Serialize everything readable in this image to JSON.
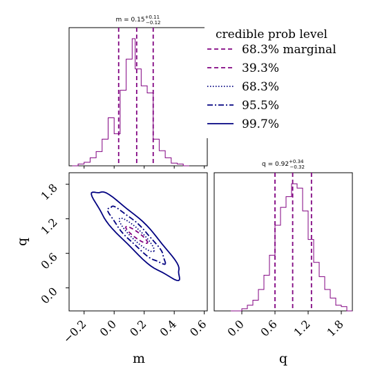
{
  "chart_data": [
    {
      "type": "histogram",
      "panel": "marginal-m",
      "title": "m = 0.15^{+0.11}_{-0.12}",
      "title_parts": {
        "base": "m = 0.15",
        "sup": "+0.11",
        "sub": "−0.12"
      },
      "x_range": [
        -0.3,
        0.62
      ],
      "x_ticks": [
        -0.2,
        0.0,
        0.2,
        0.4,
        0.6
      ],
      "bin_edges": [
        -0.28,
        -0.24,
        -0.2,
        -0.16,
        -0.12,
        -0.08,
        -0.04,
        0.0,
        0.04,
        0.08,
        0.12,
        0.14,
        0.18,
        0.22,
        0.26,
        0.3,
        0.34,
        0.38,
        0.42,
        0.46,
        0.5
      ],
      "counts": [
        0,
        2,
        4,
        9,
        16,
        30,
        54,
        36,
        85,
        120,
        143,
        109,
        90,
        82,
        30,
        17,
        9,
        3,
        2,
        0
      ],
      "quantile_lines": [
        0.03,
        0.15,
        0.26
      ],
      "line_color": "#800080"
    },
    {
      "type": "histogram",
      "panel": "marginal-q",
      "title": "q = 0.92^{+0.34}_{-0.32}",
      "title_parts": {
        "base": "q = 0.92",
        "sup": "+0.34",
        "sub": "−0.32"
      },
      "x_range": [
        -0.5,
        2.0
      ],
      "x_ticks": [
        0.0,
        0.6,
        1.2,
        1.8
      ],
      "x_tick_labels": [
        "0.0",
        "0.6",
        "1.2",
        "1.8"
      ],
      "xlabel": "q",
      "bin_edges": [
        -0.2,
        0.0,
        0.1,
        0.2,
        0.3,
        0.4,
        0.5,
        0.6,
        0.7,
        0.8,
        0.9,
        1.0,
        1.1,
        1.2,
        1.3,
        1.4,
        1.5,
        1.6,
        1.7,
        1.8,
        1.9,
        2.0
      ],
      "counts": [
        0,
        3,
        8,
        15,
        30,
        50,
        78,
        120,
        145,
        160,
        178,
        172,
        140,
        100,
        68,
        48,
        30,
        18,
        8,
        6,
        0
      ],
      "quantile_lines": [
        0.6,
        0.92,
        1.26
      ],
      "line_color": "#800080"
    },
    {
      "type": "contour",
      "panel": "joint-m-q",
      "xlabel": "m",
      "ylabel": "q",
      "x_range": [
        -0.3,
        0.62
      ],
      "y_range": [
        -0.4,
        2.0
      ],
      "x_ticks": [
        -0.2,
        0.0,
        0.2,
        0.4,
        0.6
      ],
      "x_tick_labels": [
        "−0.2",
        "0.0",
        "0.2",
        "0.4",
        "0.6"
      ],
      "y_ticks": [
        0.0,
        0.6,
        1.2,
        1.8
      ],
      "y_tick_labels": [
        "0.0",
        "0.6",
        "1.2",
        "1.8"
      ],
      "center": [
        0.15,
        0.92
      ],
      "contours": [
        {
          "level": "39.3%",
          "style": "dashed",
          "color": "#800080",
          "half_width_m": 0.1,
          "half_width_q": 0.2
        },
        {
          "level": "68.3%",
          "style": "dotted",
          "color": "#000080",
          "half_width_m": 0.16,
          "half_width_q": 0.4
        },
        {
          "level": "95.5%",
          "style": "dashdot",
          "color": "#000080",
          "half_width_m": 0.26,
          "half_width_q": 0.68
        },
        {
          "level": "99.7%",
          "style": "solid",
          "color": "#000080",
          "half_width_m": 0.4,
          "half_width_q": 1.05
        }
      ],
      "legend": {
        "title": "credible prob level",
        "placement": "top-right",
        "entries": [
          {
            "label": "68.3% marginal",
            "style": "dashed",
            "color": "#800080"
          },
          {
            "label": "39.3%",
            "style": "dashed",
            "color": "#800080"
          },
          {
            "label": "68.3%",
            "style": "dotted",
            "color": "#000080"
          },
          {
            "label": "95.5%",
            "style": "dashdot",
            "color": "#000080"
          },
          {
            "label": "99.7%",
            "style": "solid",
            "color": "#000080"
          }
        ]
      }
    }
  ]
}
